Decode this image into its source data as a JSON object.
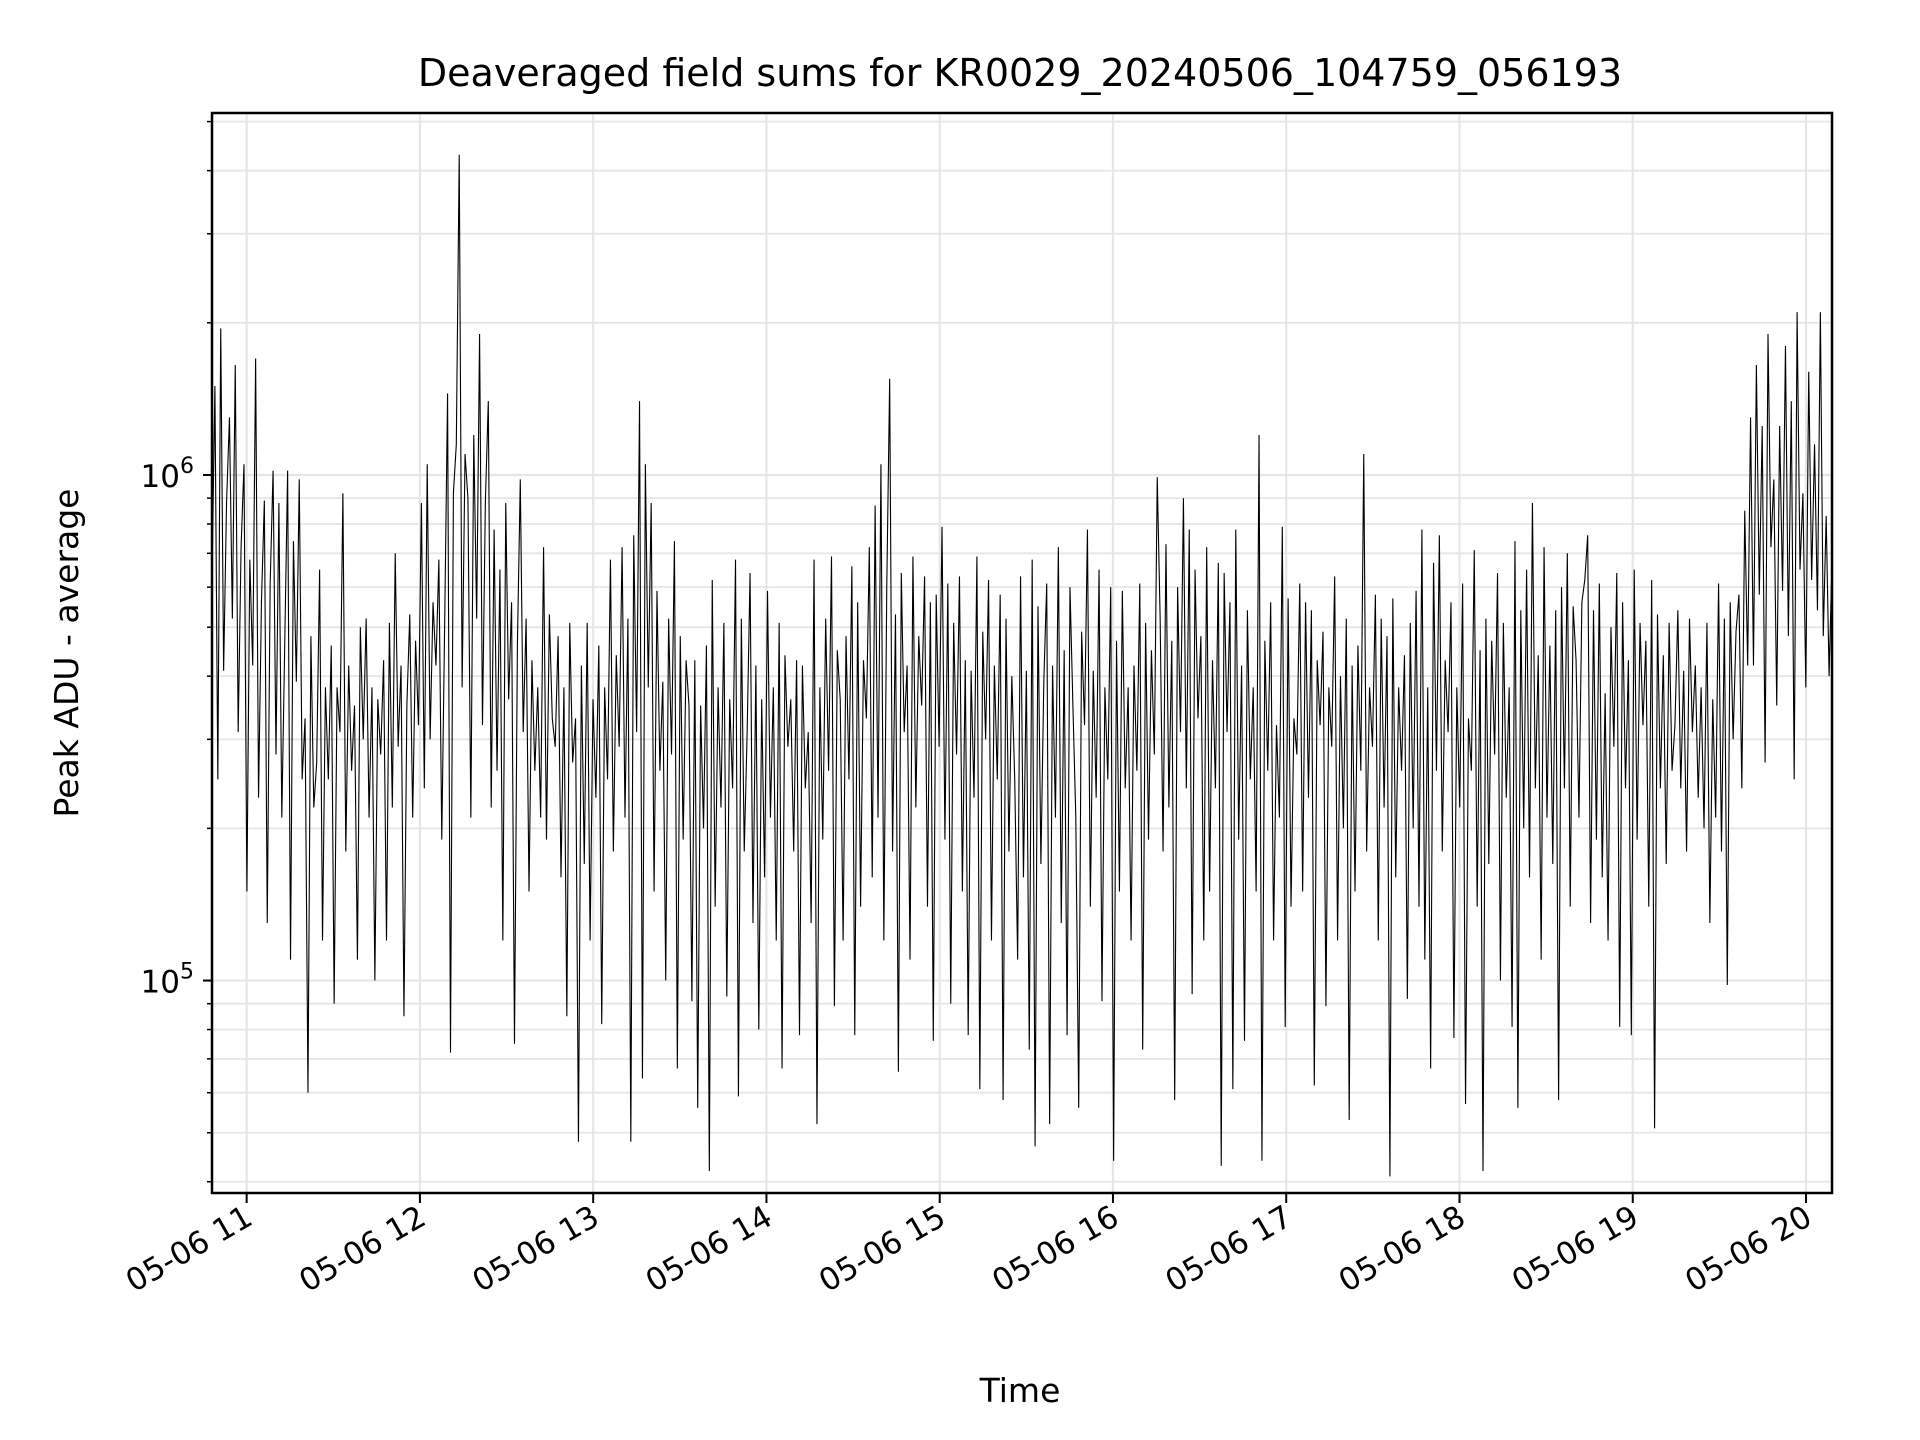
{
  "chart_data": {
    "type": "line",
    "title": "Deaveraged field sums for KR0029_20240506_104759_056193",
    "xlabel": "Time",
    "ylabel": "Peak ADU - average",
    "xscale": "time",
    "yscale": "log",
    "grid": true,
    "legend": "none",
    "line_color": "#000000",
    "grid_color": "#e6e6e6",
    "xlim": [
      "2024-05-06 10:48",
      "2024-05-06 20:09"
    ],
    "ylim": [
      38000,
      5200000
    ],
    "x_ticks": [
      "05-06 11",
      "05-06 12",
      "05-06 13",
      "05-06 14",
      "05-06 15",
      "05-06 16",
      "05-06 17",
      "05-06 18",
      "05-06 19",
      "05-06 20"
    ],
    "y_ticks": [
      {
        "base": "10",
        "exp": "5",
        "value": 100000
      },
      {
        "base": "10",
        "exp": "6",
        "value": 1000000
      }
    ],
    "series": [
      {
        "x_start": "2024-05-06 10:48",
        "x_end": "2024-05-06 20:09",
        "values": [
          620000,
          1500000,
          250000,
          1950000,
          410000,
          880000,
          1300000,
          520000,
          1650000,
          310000,
          720000,
          1050000,
          150000,
          680000,
          420000,
          1700000,
          230000,
          560000,
          890000,
          130000,
          610000,
          1020000,
          280000,
          880000,
          210000,
          460000,
          1020000,
          110000,
          740000,
          390000,
          980000,
          250000,
          330000,
          60000,
          480000,
          220000,
          270000,
          650000,
          120000,
          380000,
          250000,
          460000,
          90000,
          380000,
          310000,
          920000,
          180000,
          420000,
          260000,
          350000,
          110000,
          500000,
          300000,
          520000,
          210000,
          380000,
          100000,
          360000,
          280000,
          430000,
          120000,
          510000,
          220000,
          700000,
          290000,
          420000,
          85000,
          350000,
          530000,
          210000,
          470000,
          320000,
          880000,
          240000,
          1050000,
          300000,
          560000,
          420000,
          680000,
          190000,
          510000,
          1450000,
          72000,
          920000,
          1150000,
          4300000,
          380000,
          1100000,
          900000,
          210000,
          1200000,
          520000,
          1900000,
          320000,
          890000,
          1400000,
          220000,
          780000,
          260000,
          650000,
          120000,
          880000,
          360000,
          560000,
          75000,
          460000,
          980000,
          310000,
          520000,
          150000,
          430000,
          260000,
          380000,
          210000,
          720000,
          190000,
          530000,
          330000,
          290000,
          480000,
          160000,
          380000,
          85000,
          510000,
          270000,
          330000,
          48000,
          420000,
          170000,
          510000,
          120000,
          360000,
          230000,
          460000,
          82000,
          380000,
          250000,
          680000,
          180000,
          440000,
          290000,
          720000,
          210000,
          520000,
          48000,
          760000,
          310000,
          1400000,
          64000,
          1050000,
          380000,
          880000,
          150000,
          590000,
          260000,
          390000,
          100000,
          520000,
          280000,
          740000,
          67000,
          480000,
          190000,
          430000,
          350000,
          91000,
          430000,
          56000,
          350000,
          200000,
          460000,
          42000,
          620000,
          140000,
          380000,
          220000,
          510000,
          93000,
          360000,
          240000,
          680000,
          59000,
          520000,
          180000,
          310000,
          640000,
          130000,
          420000,
          80000,
          360000,
          160000,
          590000,
          210000,
          380000,
          120000,
          510000,
          67000,
          440000,
          290000,
          360000,
          180000,
          430000,
          78000,
          420000,
          240000,
          310000,
          130000,
          680000,
          52000,
          380000,
          190000,
          520000,
          260000,
          690000,
          89000,
          450000,
          360000,
          120000,
          480000,
          250000,
          660000,
          78000,
          560000,
          140000,
          430000,
          330000,
          720000,
          160000,
          870000,
          210000,
          1050000,
          120000,
          600000,
          1550000,
          180000,
          530000,
          66000,
          640000,
          310000,
          420000,
          110000,
          690000,
          220000,
          480000,
          350000,
          630000,
          140000,
          560000,
          76000,
          580000,
          290000,
          790000,
          190000,
          610000,
          90000,
          510000,
          280000,
          630000,
          150000,
          430000,
          78000,
          410000,
          230000,
          690000,
          61000,
          490000,
          300000,
          620000,
          120000,
          420000,
          250000,
          580000,
          58000,
          520000,
          180000,
          400000,
          250000,
          110000,
          630000,
          160000,
          410000,
          73000,
          680000,
          47000,
          550000,
          170000,
          390000,
          610000,
          52000,
          420000,
          210000,
          720000,
          130000,
          450000,
          78000,
          600000,
          350000,
          210000,
          56000,
          490000,
          320000,
          780000,
          140000,
          410000,
          230000,
          650000,
          91000,
          380000,
          250000,
          600000,
          44000,
          470000,
          150000,
          590000,
          240000,
          380000,
          120000,
          420000,
          260000,
          610000,
          73000,
          510000,
          190000,
          450000,
          280000,
          990000,
          520000,
          180000,
          730000,
          220000,
          470000,
          58000,
          600000,
          310000,
          900000,
          240000,
          780000,
          94000,
          650000,
          330000,
          480000,
          120000,
          720000,
          150000,
          430000,
          240000,
          670000,
          43000,
          640000,
          310000,
          560000,
          61000,
          780000,
          190000,
          420000,
          76000,
          540000,
          250000,
          380000,
          150000,
          1200000,
          44000,
          470000,
          260000,
          560000,
          120000,
          320000,
          210000,
          790000,
          81000,
          570000,
          140000,
          330000,
          280000,
          610000,
          150000,
          560000,
          230000,
          540000,
          62000,
          430000,
          320000,
          490000,
          89000,
          380000,
          290000,
          630000,
          120000,
          400000,
          200000,
          520000,
          53000,
          420000,
          150000,
          460000,
          260000,
          1100000,
          180000,
          380000,
          290000,
          580000,
          120000,
          520000,
          220000,
          480000,
          41000,
          570000,
          160000,
          380000,
          260000,
          440000,
          92000,
          510000,
          200000,
          590000,
          140000,
          780000,
          110000,
          380000,
          67000,
          670000,
          260000,
          760000,
          180000,
          430000,
          310000,
          560000,
          77000,
          380000,
          220000,
          610000,
          57000,
          330000,
          260000,
          710000,
          140000,
          450000,
          42000,
          520000,
          170000,
          470000,
          280000,
          640000,
          100000,
          510000,
          230000,
          380000,
          81000,
          740000,
          56000,
          540000,
          200000,
          650000,
          160000,
          880000,
          240000,
          440000,
          110000,
          720000,
          210000,
          460000,
          170000,
          540000,
          58000,
          600000,
          240000,
          700000,
          140000,
          550000,
          430000,
          210000,
          560000,
          620000,
          760000,
          130000,
          540000,
          190000,
          610000,
          160000,
          370000,
          120000,
          500000,
          290000,
          640000,
          81000,
          560000,
          240000,
          430000,
          78000,
          650000,
          190000,
          510000,
          320000,
          470000,
          140000,
          620000,
          51000,
          530000,
          240000,
          440000,
          170000,
          510000,
          260000,
          320000,
          540000,
          240000,
          410000,
          180000,
          520000,
          310000,
          420000,
          230000,
          380000,
          200000,
          510000,
          130000,
          360000,
          210000,
          610000,
          180000,
          520000,
          98000,
          560000,
          300000,
          490000,
          580000,
          240000,
          850000,
          420000,
          1300000,
          420000,
          1650000,
          580000,
          1250000,
          270000,
          1900000,
          720000,
          980000,
          350000,
          1250000,
          590000,
          1800000,
          480000,
          1400000,
          250000,
          2100000,
          650000,
          920000,
          380000,
          1600000,
          620000,
          1150000,
          540000,
          2100000,
          480000,
          830000,
          400000,
          680000
        ]
      }
    ]
  }
}
